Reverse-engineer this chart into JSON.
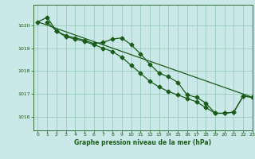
{
  "bg_color": "#cbe8e8",
  "grid_color": "#99ccbb",
  "line_color": "#1a5c1a",
  "xlabel": "Graphe pression niveau de la mer (hPa)",
  "ylim": [
    1015.4,
    1020.9
  ],
  "xlim": [
    -0.5,
    23
  ],
  "yticks": [
    1016,
    1017,
    1018,
    1019,
    1020
  ],
  "xticks": [
    0,
    1,
    2,
    3,
    4,
    5,
    6,
    7,
    8,
    9,
    10,
    11,
    12,
    13,
    14,
    15,
    16,
    17,
    18,
    19,
    20,
    21,
    22,
    23
  ],
  "line_straight": {
    "x": [
      0,
      23
    ],
    "y": [
      1020.15,
      1016.85
    ]
  },
  "series1": {
    "x": [
      0,
      1,
      2,
      3,
      4,
      5,
      6,
      7,
      8,
      9,
      10,
      11,
      12,
      13,
      14,
      15,
      16,
      17,
      18,
      19,
      20,
      21,
      22,
      23
    ],
    "y": [
      1020.15,
      1020.35,
      1019.75,
      1019.55,
      1019.45,
      1019.35,
      1019.2,
      1019.25,
      1019.4,
      1019.45,
      1019.15,
      1018.75,
      1018.3,
      1017.9,
      1017.75,
      1017.5,
      1016.95,
      1016.85,
      1016.6,
      1016.15,
      1016.15,
      1016.2,
      1016.9,
      1016.85
    ]
  },
  "series2": {
    "x": [
      1,
      2,
      3,
      4,
      5,
      6,
      7,
      8,
      9,
      10,
      11,
      12,
      13,
      14,
      15,
      16,
      17,
      18,
      19,
      20,
      21,
      22,
      23
    ],
    "y": [
      1020.15,
      1019.75,
      1019.5,
      1019.4,
      1019.3,
      1019.15,
      1019.0,
      1018.85,
      1018.6,
      1018.25,
      1017.9,
      1017.55,
      1017.3,
      1017.1,
      1016.95,
      1016.8,
      1016.65,
      1016.4,
      1016.15,
      1016.15,
      1016.2,
      1016.9,
      1016.85
    ]
  }
}
